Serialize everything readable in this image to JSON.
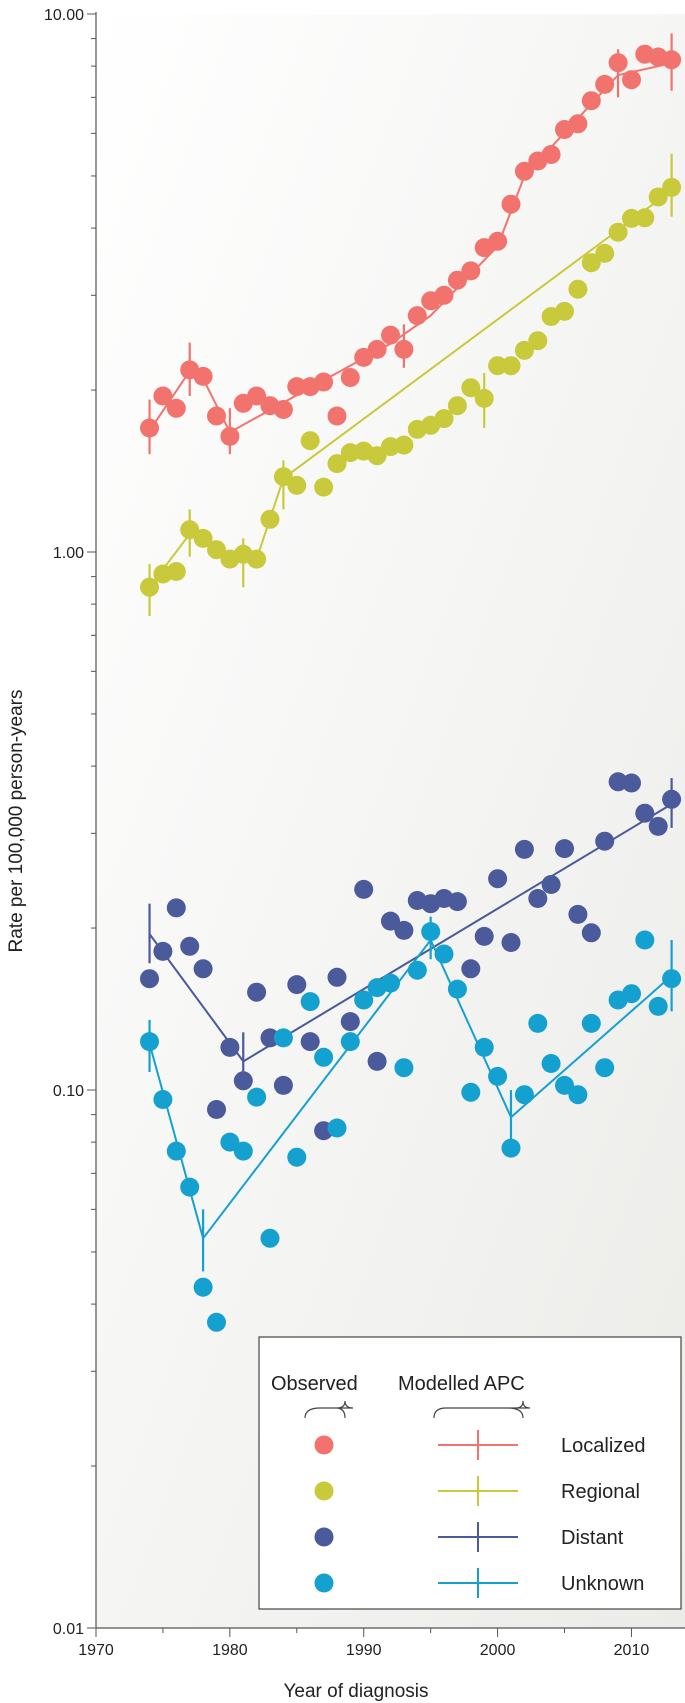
{
  "chart_data": {
    "type": "scatter",
    "title": "",
    "xlabel": "Year of diagnosis",
    "ylabel": "Rate per 100,000 person-years",
    "xlim": [
      1970,
      2014
    ],
    "ylim": [
      0.01,
      10
    ],
    "y_scale": "log",
    "grid": false,
    "x_ticks": [
      "1970",
      "1980",
      "1990",
      "2000",
      "2010"
    ],
    "y_ticks": [
      "0.01",
      "0.10",
      "1.00",
      "10.00"
    ],
    "legend": {
      "placement": "bottom-right",
      "observed_header": "Observed",
      "modelled_header": "Modelled APC"
    },
    "series": [
      {
        "name": "Localized",
        "color": "#f2736e",
        "observed": {
          "x": [
            1974,
            1975,
            1976,
            1977,
            1978,
            1979,
            1980,
            1981,
            1982,
            1983,
            1984,
            1985,
            1986,
            1987,
            1988,
            1989,
            1990,
            1991,
            1992,
            1993,
            1994,
            1995,
            1996,
            1997,
            1998,
            1999,
            2000,
            2001,
            2002,
            2003,
            2004,
            2005,
            2006,
            2007,
            2008,
            2009,
            2010,
            2011,
            2012,
            2013
          ],
          "y": [
            1.7,
            1.95,
            1.85,
            2.18,
            2.12,
            1.79,
            1.64,
            1.89,
            1.95,
            1.87,
            1.84,
            2.03,
            2.03,
            2.07,
            1.79,
            2.11,
            2.3,
            2.38,
            2.53,
            2.38,
            2.75,
            2.93,
            3.0,
            3.2,
            3.33,
            3.68,
            3.78,
            4.43,
            5.1,
            5.33,
            5.48,
            6.1,
            6.25,
            6.9,
            7.4,
            8.12,
            7.55,
            8.42,
            8.32,
            8.22
          ]
        },
        "model": {
          "x": [
            1974,
            1977,
            1978,
            1980,
            1986,
            1992,
            1995,
            2000,
            2002,
            2009,
            2013
          ],
          "y": [
            1.68,
            2.17,
            2.1,
            1.67,
            2.02,
            2.44,
            2.75,
            3.7,
            5.0,
            7.7,
            8.1
          ]
        },
        "error_bars": [
          {
            "x": 1974,
            "y": 1.7,
            "lo": 1.52,
            "hi": 1.92
          },
          {
            "x": 1977,
            "y": 2.17,
            "lo": 1.95,
            "hi": 2.45
          },
          {
            "x": 1980,
            "y": 1.67,
            "lo": 1.52,
            "hi": 1.85
          },
          {
            "x": 1993,
            "y": 2.38,
            "lo": 2.2,
            "hi": 2.65
          },
          {
            "x": 2009,
            "y": 7.7,
            "lo": 7.0,
            "hi": 8.6
          },
          {
            "x": 2013,
            "y": 8.1,
            "lo": 7.2,
            "hi": 9.2
          }
        ]
      },
      {
        "name": "Regional",
        "color": "#c9c93c",
        "observed": {
          "x": [
            1974,
            1975,
            1976,
            1977,
            1978,
            1979,
            1980,
            1981,
            1982,
            1983,
            1984,
            1985,
            1986,
            1987,
            1988,
            1989,
            1990,
            1991,
            1992,
            1993,
            1994,
            1995,
            1996,
            1997,
            1998,
            1999,
            2000,
            2001,
            2002,
            2003,
            2004,
            2005,
            2006,
            2007,
            2008,
            2009,
            2010,
            2011,
            2012,
            2013
          ],
          "y": [
            0.86,
            0.91,
            0.92,
            1.1,
            1.06,
            1.01,
            0.97,
            0.99,
            0.97,
            1.15,
            1.38,
            1.33,
            1.61,
            1.32,
            1.46,
            1.53,
            1.54,
            1.51,
            1.57,
            1.58,
            1.69,
            1.72,
            1.77,
            1.87,
            2.02,
            1.93,
            2.22,
            2.22,
            2.37,
            2.47,
            2.74,
            2.8,
            3.08,
            3.45,
            3.59,
            3.93,
            4.17,
            4.18,
            4.57,
            4.76
          ]
        },
        "model": {
          "x": [
            1974,
            1977,
            1980,
            1981,
            1982,
            1984,
            2013
          ],
          "y": [
            0.86,
            1.08,
            0.97,
            0.99,
            0.97,
            1.37,
            4.7
          ]
        },
        "error_bars": [
          {
            "x": 1974,
            "y": 0.86,
            "lo": 0.76,
            "hi": 0.95
          },
          {
            "x": 1977,
            "y": 1.08,
            "lo": 0.98,
            "hi": 1.2
          },
          {
            "x": 1981,
            "y": 0.99,
            "lo": 0.86,
            "hi": 1.06
          },
          {
            "x": 1984,
            "y": 1.37,
            "lo": 1.2,
            "hi": 1.48
          },
          {
            "x": 1999,
            "y": 1.93,
            "lo": 1.7,
            "hi": 2.15
          },
          {
            "x": 2013,
            "y": 4.7,
            "lo": 4.2,
            "hi": 5.5
          }
        ]
      },
      {
        "name": "Distant",
        "color": "#4a5a9a",
        "observed": {
          "x": [
            1974,
            1975,
            1976,
            1977,
            1978,
            1979,
            1980,
            1981,
            1982,
            1983,
            1984,
            1985,
            1986,
            1987,
            1988,
            1989,
            1990,
            1991,
            1992,
            1993,
            1994,
            1995,
            1996,
            1997,
            1998,
            1999,
            2000,
            2001,
            2002,
            2003,
            2004,
            2005,
            2006,
            2007,
            2008,
            2009,
            2010,
            2011,
            2012,
            2013
          ],
          "y": [
            0.161,
            0.181,
            0.218,
            0.185,
            0.168,
            0.092,
            0.12,
            0.104,
            0.152,
            0.125,
            0.102,
            0.157,
            0.123,
            0.084,
            0.162,
            0.134,
            0.236,
            0.113,
            0.206,
            0.198,
            0.225,
            0.222,
            0.227,
            0.224,
            0.168,
            0.193,
            0.247,
            0.188,
            0.28,
            0.227,
            0.241,
            0.281,
            0.212,
            0.196,
            0.29,
            0.374,
            0.372,
            0.327,
            0.309,
            0.347
          ]
        },
        "model": {
          "x": [
            1974,
            1981,
            2013
          ],
          "y": [
            0.195,
            0.113,
            0.34
          ]
        },
        "error_bars": [
          {
            "x": 1974,
            "y": 0.195,
            "lo": 0.172,
            "hi": 0.222
          },
          {
            "x": 1981,
            "y": 0.113,
            "lo": 0.103,
            "hi": 0.128
          },
          {
            "x": 2013,
            "y": 0.34,
            "lo": 0.307,
            "hi": 0.38
          }
        ]
      },
      {
        "name": "Unknown",
        "color": "#15a1d0",
        "observed": {
          "x": [
            1974,
            1975,
            1976,
            1977,
            1978,
            1979,
            1980,
            1981,
            1982,
            1983,
            1984,
            1985,
            1986,
            1987,
            1988,
            1989,
            1990,
            1991,
            1992,
            1993,
            1994,
            1995,
            1996,
            1997,
            1998,
            1999,
            2000,
            2001,
            2002,
            2003,
            2004,
            2005,
            2006,
            2007,
            2008,
            2009,
            2010,
            2011,
            2012,
            2013
          ],
          "y": [
            0.123,
            0.096,
            0.077,
            0.066,
            0.043,
            0.037,
            0.08,
            0.077,
            0.097,
            0.053,
            0.125,
            0.075,
            0.146,
            0.115,
            0.085,
            0.123,
            0.147,
            0.155,
            0.158,
            0.11,
            0.167,
            0.197,
            0.179,
            0.154,
            0.099,
            0.12,
            0.106,
            0.078,
            0.098,
            0.133,
            0.112,
            0.102,
            0.098,
            0.133,
            0.11,
            0.147,
            0.151,
            0.19,
            0.143,
            0.161
          ]
        },
        "model": {
          "x": [
            1974,
            1978,
            1995,
            2001,
            2013
          ],
          "y": [
            0.122,
            0.053,
            0.19,
            0.089,
            0.163
          ]
        },
        "error_bars": [
          {
            "x": 1974,
            "y": 0.122,
            "lo": 0.108,
            "hi": 0.135
          },
          {
            "x": 1978,
            "y": 0.053,
            "lo": 0.046,
            "hi": 0.06
          },
          {
            "x": 1995,
            "y": 0.19,
            "lo": 0.175,
            "hi": 0.21
          },
          {
            "x": 2001,
            "y": 0.089,
            "lo": 0.077,
            "hi": 0.1
          },
          {
            "x": 2013,
            "y": 0.163,
            "lo": 0.14,
            "hi": 0.19
          }
        ]
      }
    ]
  }
}
